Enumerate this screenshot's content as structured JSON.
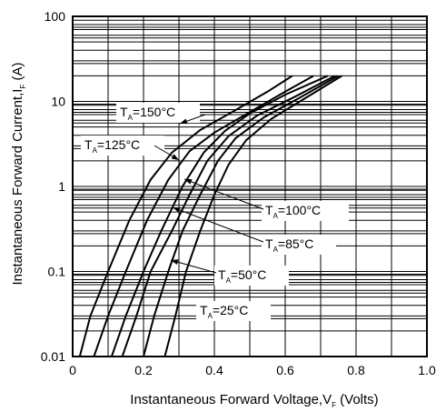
{
  "chart_data": {
    "type": "line",
    "title": "",
    "xlabel": "Instantaneous Forward Voltage,V",
    "xlabel_sub": "F",
    "xlabel_unit": " (Volts)",
    "ylabel": "Instantaneous Forward Current,I",
    "ylabel_sub": "F",
    "ylabel_unit": " (A)",
    "x_ticks": [
      "0",
      "0.2",
      "0.4",
      "0.6",
      "0.8",
      "1.0"
    ],
    "y_ticks": [
      "0.01",
      "0.1",
      "1",
      "10",
      "100"
    ],
    "xlim": [
      0,
      1.0
    ],
    "ylim": [
      0.01,
      100
    ],
    "y_scale": "log",
    "grid": true,
    "series": [
      {
        "name": "T_A=150°C",
        "label_main": "T",
        "label_sub": "A",
        "label_rest": "=150°C",
        "points": [
          [
            0.02,
            0.01
          ],
          [
            0.05,
            0.03
          ],
          [
            0.1,
            0.1
          ],
          [
            0.16,
            0.4
          ],
          [
            0.22,
            1.2
          ],
          [
            0.28,
            2.5
          ],
          [
            0.36,
            4.6
          ],
          [
            0.45,
            7.5
          ],
          [
            0.55,
            13
          ],
          [
            0.62,
            20
          ]
        ]
      },
      {
        "name": "T_A=125°C",
        "label_main": "T",
        "label_sub": "A",
        "label_rest": "=125°C",
        "points": [
          [
            0.06,
            0.01
          ],
          [
            0.1,
            0.03
          ],
          [
            0.15,
            0.1
          ],
          [
            0.21,
            0.4
          ],
          [
            0.27,
            1.2
          ],
          [
            0.33,
            2.6
          ],
          [
            0.4,
            4.3
          ],
          [
            0.5,
            7.5
          ],
          [
            0.6,
            13
          ],
          [
            0.68,
            20
          ]
        ]
      },
      {
        "name": "T_A=100°C",
        "label_main": "T",
        "label_sub": "A",
        "label_rest": "=100°C",
        "points": [
          [
            0.11,
            0.01
          ],
          [
            0.15,
            0.03
          ],
          [
            0.2,
            0.1
          ],
          [
            0.25,
            0.3
          ],
          [
            0.31,
            1.0
          ],
          [
            0.37,
            2.5
          ],
          [
            0.43,
            4.5
          ],
          [
            0.5,
            7.2
          ],
          [
            0.6,
            12
          ],
          [
            0.72,
            20
          ]
        ]
      },
      {
        "name": "T_A=85°C",
        "label_main": "T",
        "label_sub": "A",
        "label_rest": "=85°C",
        "points": [
          [
            0.14,
            0.01
          ],
          [
            0.18,
            0.03
          ],
          [
            0.22,
            0.1
          ],
          [
            0.28,
            0.3
          ],
          [
            0.33,
            0.8
          ],
          [
            0.38,
            2.0
          ],
          [
            0.44,
            3.9
          ],
          [
            0.52,
            6.8
          ],
          [
            0.63,
            11.5
          ],
          [
            0.74,
            20
          ]
        ]
      },
      {
        "name": "T_A=50°C",
        "label_main": "T",
        "label_sub": "A",
        "label_rest": "=50°C",
        "points": [
          [
            0.2,
            0.01
          ],
          [
            0.23,
            0.03
          ],
          [
            0.27,
            0.1
          ],
          [
            0.31,
            0.3
          ],
          [
            0.36,
            0.8
          ],
          [
            0.41,
            2.0
          ],
          [
            0.46,
            3.7
          ],
          [
            0.54,
            6.5
          ],
          [
            0.64,
            11
          ],
          [
            0.75,
            20
          ]
        ]
      },
      {
        "name": "T_A=25°C",
        "label_main": "T",
        "label_sub": "A",
        "label_rest": "=25°C",
        "points": [
          [
            0.26,
            0.01
          ],
          [
            0.29,
            0.03
          ],
          [
            0.32,
            0.1
          ],
          [
            0.36,
            0.3
          ],
          [
            0.4,
            0.8
          ],
          [
            0.44,
            1.8
          ],
          [
            0.49,
            3.5
          ],
          [
            0.56,
            6.2
          ],
          [
            0.65,
            10.5
          ],
          [
            0.76,
            20
          ]
        ]
      }
    ]
  }
}
